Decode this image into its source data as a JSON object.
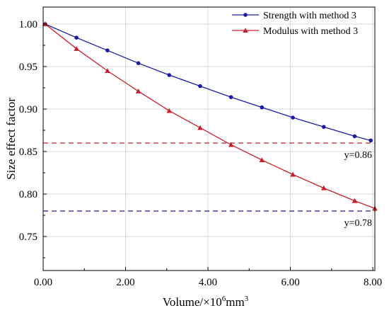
{
  "chart_data": {
    "type": "line",
    "xlabel": {
      "prefix": "Volume/×10",
      "sup": "6",
      "suffix": "mm",
      "sup2": "3"
    },
    "ylabel": "Size effect factor",
    "xlim": [
      0,
      8.05
    ],
    "ylim": [
      0.71,
      1.02
    ],
    "xticks": [
      "0.00",
      "2.00",
      "4.00",
      "6.00",
      "8.00"
    ],
    "xtick_values": [
      0,
      2,
      4,
      6,
      8
    ],
    "yticks": [
      "0.75",
      "0.80",
      "0.85",
      "0.90",
      "0.95",
      "1.00"
    ],
    "ytick_values": [
      0.75,
      0.8,
      0.85,
      0.9,
      0.95,
      1.0
    ],
    "grid": true,
    "legend_position": "top-right",
    "series": [
      {
        "name": "Strength with method 3",
        "color": "#1a1aa6",
        "marker": "circle",
        "x": [
          0.05,
          0.81,
          1.56,
          2.31,
          3.06,
          3.81,
          4.56,
          5.31,
          6.06,
          6.81,
          7.56,
          7.95
        ],
        "y": [
          1.0,
          0.984,
          0.969,
          0.954,
          0.94,
          0.927,
          0.914,
          0.902,
          0.89,
          0.879,
          0.868,
          0.863
        ]
      },
      {
        "name": "Modulus with method 3",
        "color": "#c8202a",
        "marker": "triangle",
        "x": [
          0.05,
          0.81,
          1.56,
          2.31,
          3.06,
          3.81,
          4.56,
          5.31,
          6.06,
          6.81,
          7.56,
          8.05
        ],
        "y": [
          1.0,
          0.971,
          0.945,
          0.921,
          0.898,
          0.878,
          0.858,
          0.84,
          0.823,
          0.807,
          0.792,
          0.783
        ]
      }
    ],
    "reference_lines": [
      {
        "y": 0.86,
        "color": "#c8202a",
        "label": "y=0.86"
      },
      {
        "y": 0.78,
        "color": "#1a1aa6",
        "label": "y=0.78"
      }
    ]
  }
}
